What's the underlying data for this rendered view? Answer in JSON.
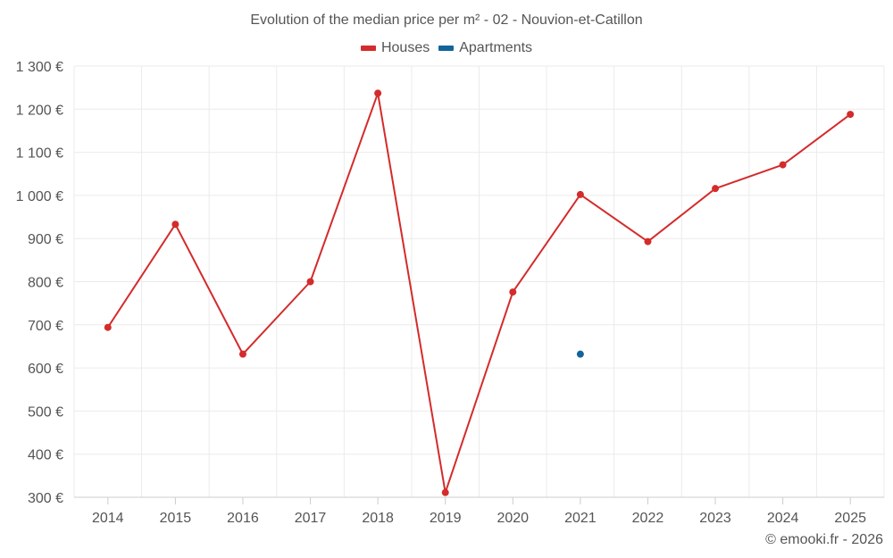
{
  "chart_data": {
    "type": "line",
    "title": "Evolution of the median price per m² - 02 - Nouvion-et-Catillon",
    "categories": [
      "2014",
      "2015",
      "2016",
      "2017",
      "2018",
      "2019",
      "2020",
      "2021",
      "2022",
      "2023",
      "2024",
      "2025"
    ],
    "series": [
      {
        "name": "Houses",
        "color": "#d42b2b",
        "values": [
          694,
          933,
          632,
          800,
          1237,
          311,
          776,
          1002,
          893,
          1016,
          1071,
          1188
        ]
      },
      {
        "name": "Apartments",
        "color": "#13649b",
        "values": [
          null,
          null,
          null,
          null,
          null,
          null,
          null,
          632,
          null,
          null,
          null,
          null
        ]
      }
    ],
    "ylim": [
      300,
      1300
    ],
    "y_ticks": [
      300,
      400,
      500,
      600,
      700,
      800,
      900,
      1000,
      1100,
      1200,
      1300
    ],
    "y_tick_labels": [
      "300 €",
      "400 €",
      "500 €",
      "600 €",
      "700 €",
      "800 €",
      "900 €",
      "1 000 €",
      "1 100 €",
      "1 200 €",
      "1 300 €"
    ],
    "xlabel": "",
    "ylabel": "",
    "grid": true,
    "legend_position": "top-center"
  },
  "credit": "© emooki.fr - 2026"
}
